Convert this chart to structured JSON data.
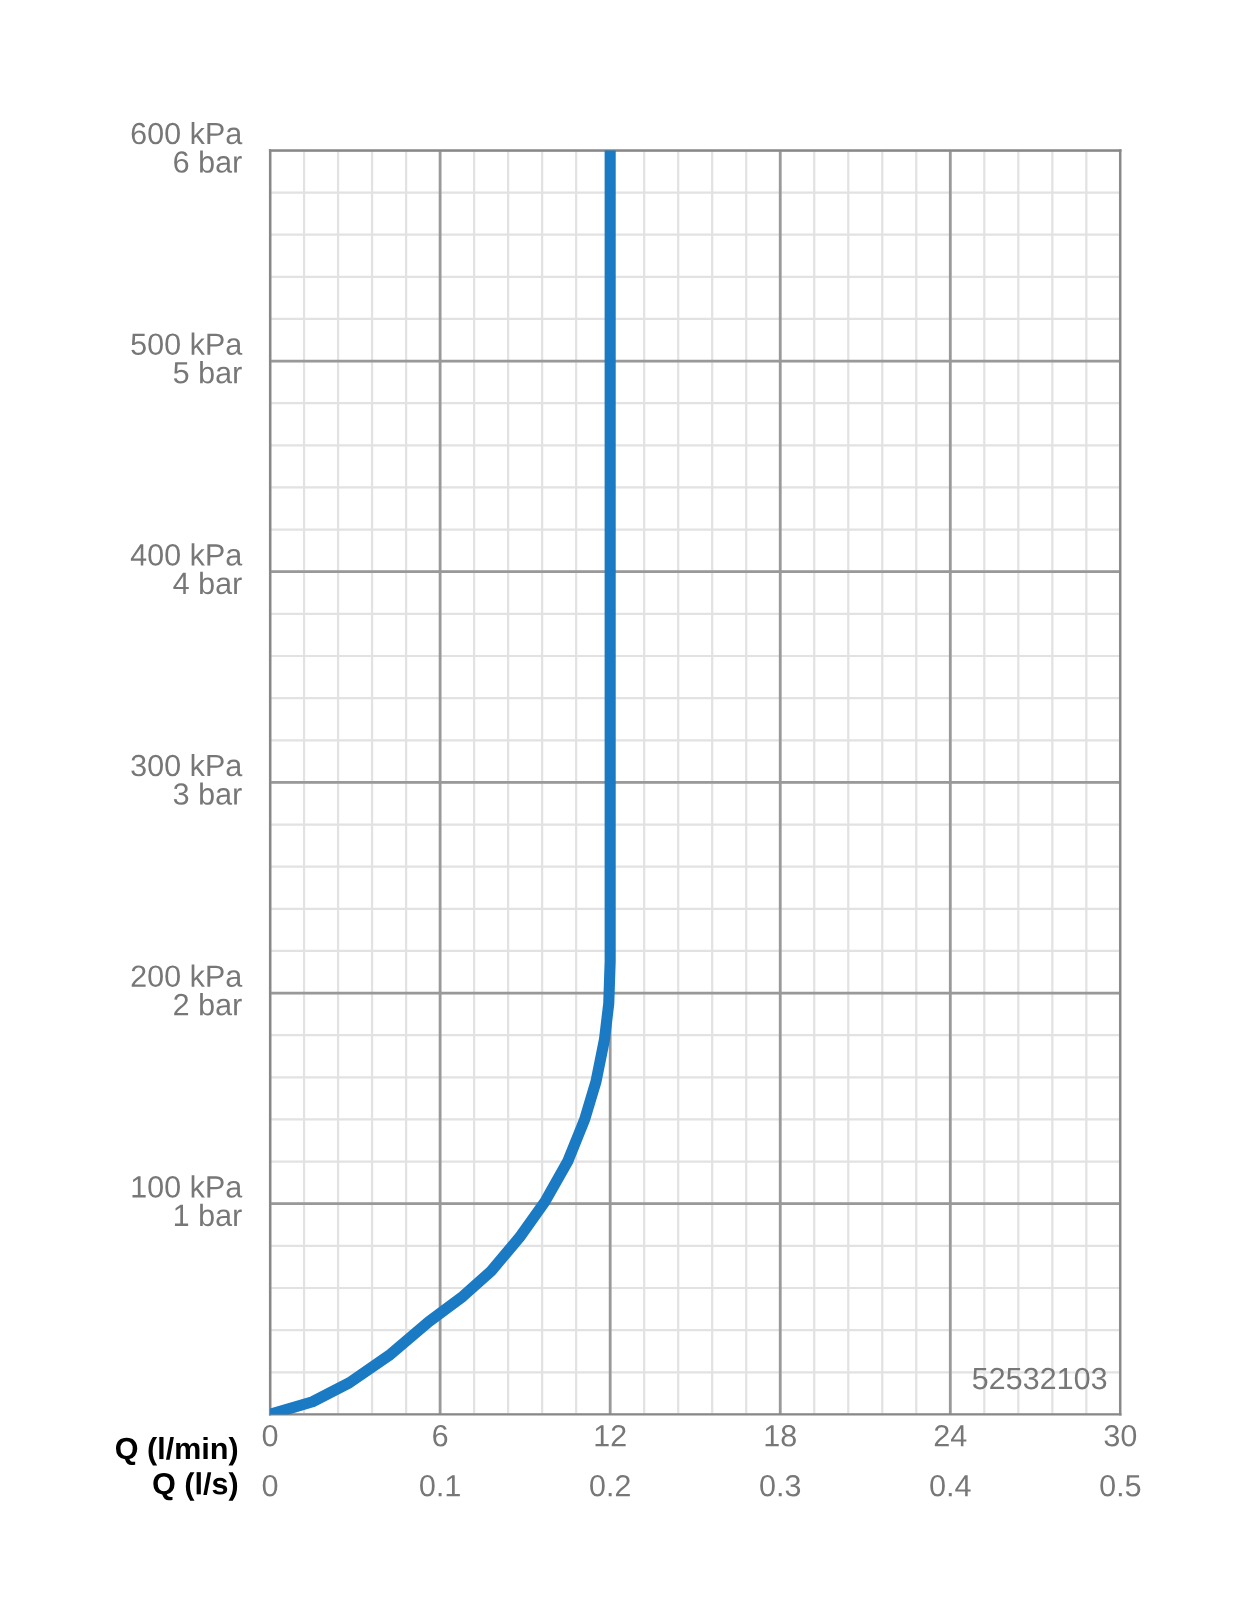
{
  "chart_data": {
    "type": "line",
    "xlabel": "Q (l/min)",
    "x2label": "Q (l/s)",
    "xlim": [
      0,
      30
    ],
    "xticks": [
      0,
      6,
      12,
      18,
      24,
      30
    ],
    "x2lim": [
      0,
      0.5
    ],
    "x2ticks": [
      0,
      0.1,
      0.2,
      0.3,
      0.4,
      0.5
    ],
    "ylim": [
      0,
      600
    ],
    "yticks": [
      {
        "value": 100,
        "label": "100 kPa"
      },
      {
        "value": 200,
        "label": "200 kPa"
      },
      {
        "value": 300,
        "label": "300 kPa"
      },
      {
        "value": 400,
        "label": "400 kPa"
      },
      {
        "value": 500,
        "label": "500 kPa"
      },
      {
        "value": 600,
        "label": "600 kPa"
      }
    ],
    "y2lim": [
      0,
      6
    ],
    "y2ticks": [
      {
        "value": 1,
        "label": "1 bar"
      },
      {
        "value": 2,
        "label": "2 bar"
      },
      {
        "value": 3,
        "label": "3 bar"
      },
      {
        "value": 4,
        "label": "4 bar"
      },
      {
        "value": 5,
        "label": "5 bar"
      },
      {
        "value": 6,
        "label": "6 bar"
      }
    ],
    "grid": true,
    "marker": "none",
    "line_style": "solid",
    "series": [
      {
        "color": "#1a7ac4",
        "x": [
          0,
          1.5,
          2.8,
          4.2,
          5.6,
          6.8,
          7.8,
          8.8,
          9.7,
          10.5,
          11.1,
          11.5,
          11.8,
          11.95,
          12,
          12,
          12
        ],
        "values": [
          0,
          6,
          15,
          28,
          44,
          56,
          68,
          84,
          101,
          120,
          140,
          158,
          178,
          195,
          215,
          300,
          600
        ]
      }
    ],
    "annotations": [
      "52532103"
    ]
  }
}
